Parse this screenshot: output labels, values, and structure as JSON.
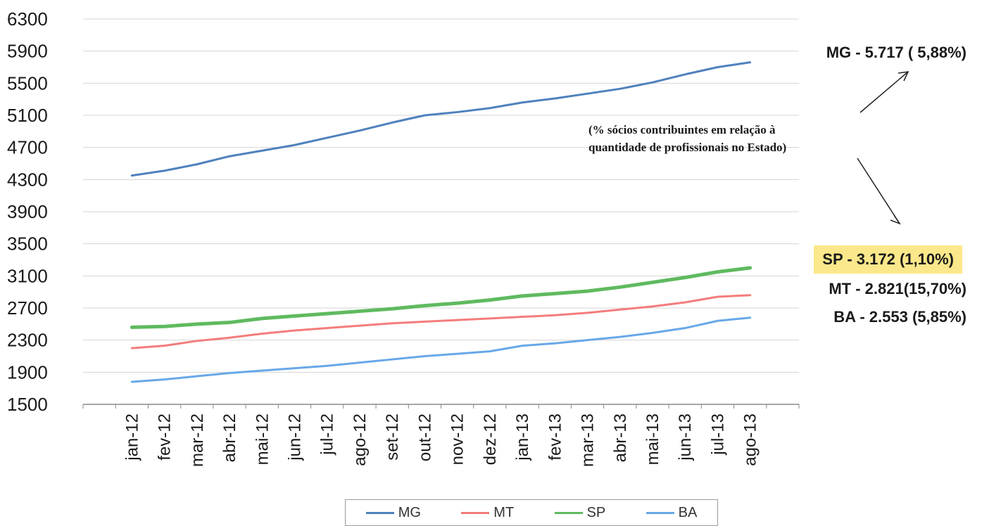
{
  "chart_data": {
    "type": "line",
    "categories": [
      "jan-12",
      "fev-12",
      "mar-12",
      "abr-12",
      "mai-12",
      "jun-12",
      "jul-12",
      "ago-12",
      "set-12",
      "out-12",
      "nov-12",
      "dez-12",
      "jan-13",
      "fev-13",
      "mar-13",
      "abr-13",
      "mai-13",
      "jun-13",
      "jul-13",
      "ago-13"
    ],
    "y_ticks": [
      "6300",
      "5900",
      "5500",
      "5100",
      "4700",
      "4300",
      "3900",
      "3500",
      "3100",
      "2700",
      "2300",
      "1900",
      "1500"
    ],
    "ylim": [
      1500,
      6300
    ],
    "grid": true,
    "legend_position": "bottom",
    "series": [
      {
        "name": "MG",
        "color": "#4f81bd",
        "width": 3,
        "values": [
          4350,
          4410,
          4490,
          4590,
          4660,
          4730,
          4820,
          4910,
          5010,
          5100,
          5140,
          5190,
          5260,
          5310,
          5370,
          5430,
          5510,
          5610,
          5700,
          5760
        ]
      },
      {
        "name": "MT",
        "color": "#f47c7c",
        "width": 3,
        "values": [
          2200,
          2230,
          2290,
          2330,
          2380,
          2420,
          2450,
          2480,
          2510,
          2530,
          2550,
          2570,
          2590,
          2610,
          2640,
          2680,
          2720,
          2770,
          2840,
          2860
        ]
      },
      {
        "name": "SP",
        "color": "#5fba5f",
        "width": 5,
        "values": [
          2460,
          2470,
          2500,
          2520,
          2570,
          2600,
          2630,
          2660,
          2690,
          2730,
          2760,
          2800,
          2850,
          2880,
          2910,
          2960,
          3020,
          3080,
          3150,
          3200
        ]
      },
      {
        "name": "BA",
        "color": "#68a8e8",
        "width": 3,
        "values": [
          1780,
          1810,
          1850,
          1890,
          1920,
          1950,
          1980,
          2020,
          2060,
          2100,
          2130,
          2160,
          2230,
          2260,
          2300,
          2340,
          2390,
          2450,
          2540,
          2580
        ]
      }
    ],
    "annotations": {
      "mg": "MG - 5.717 ( 5,88%)",
      "sp": "SP - 3.172 (1,10%)",
      "mt": "MT - 2.821(15,70%)",
      "ba": "BA - 2.553 (5,85%)",
      "note_line1": "(% sócios contribuintes em relação à",
      "note_line2": "quantidade de profissionais no Estado)"
    }
  }
}
